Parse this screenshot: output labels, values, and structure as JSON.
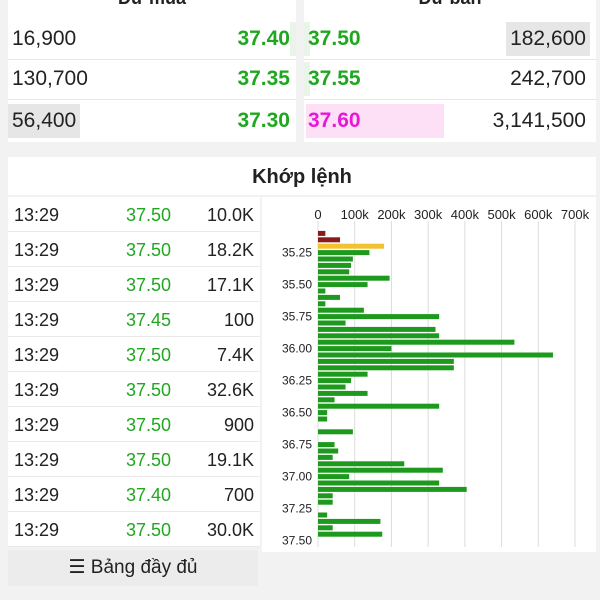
{
  "order_book": {
    "bid_header": "Dư mua",
    "ask_header": "Dư bán",
    "bids": [
      {
        "volume": "16,900",
        "price": "37.40"
      },
      {
        "volume": "130,700",
        "price": "37.35"
      },
      {
        "volume": "56,400",
        "price": "37.30"
      }
    ],
    "asks": [
      {
        "price": "37.50",
        "volume": "182,600"
      },
      {
        "price": "37.55",
        "volume": "242,700"
      },
      {
        "price": "37.60",
        "volume": "3,141,500"
      }
    ]
  },
  "matched": {
    "title": "Khớp lệnh",
    "rows": [
      {
        "time": "13:29",
        "price": "37.50",
        "volume": "10.0K"
      },
      {
        "time": "13:29",
        "price": "37.50",
        "volume": "18.2K"
      },
      {
        "time": "13:29",
        "price": "37.50",
        "volume": "17.1K"
      },
      {
        "time": "13:29",
        "price": "37.45",
        "volume": "100"
      },
      {
        "time": "13:29",
        "price": "37.50",
        "volume": "7.4K"
      },
      {
        "time": "13:29",
        "price": "37.50",
        "volume": "32.6K"
      },
      {
        "time": "13:29",
        "price": "37.50",
        "volume": "900"
      },
      {
        "time": "13:29",
        "price": "37.50",
        "volume": "19.1K"
      },
      {
        "time": "13:29",
        "price": "37.40",
        "volume": "700"
      },
      {
        "time": "13:29",
        "price": "37.50",
        "volume": "30.0K"
      }
    ],
    "full_table_label": "☰ Bảng đầy đủ"
  },
  "colors": {
    "up": "#1fa81f",
    "ceiling": "#e619d6",
    "bar_green": "#1d9a1d",
    "bar_dark_red": "#8b1a1a",
    "bar_yellow": "#f2c230"
  },
  "chart_data": {
    "type": "bar",
    "orientation": "horizontal",
    "x_ticks": [
      "0",
      "100k",
      "200k",
      "300k",
      "400k",
      "500k",
      "600k",
      "700k"
    ],
    "xlim": [
      0,
      700000
    ],
    "y_ticks": [
      "35.25",
      "35.50",
      "35.75",
      "36.00",
      "36.25",
      "36.50",
      "36.75",
      "37.00",
      "37.25",
      "37.50"
    ],
    "ylim": [
      35.05,
      37.55
    ],
    "bars": [
      {
        "price": 35.1,
        "value": 20000,
        "color": "dark_red"
      },
      {
        "price": 35.15,
        "value": 60000,
        "color": "dark_red"
      },
      {
        "price": 35.2,
        "value": 180000,
        "color": "yellow"
      },
      {
        "price": 35.25,
        "value": 140000,
        "color": "green"
      },
      {
        "price": 35.3,
        "value": 95000,
        "color": "green"
      },
      {
        "price": 35.35,
        "value": 90000,
        "color": "green"
      },
      {
        "price": 35.4,
        "value": 85000,
        "color": "green"
      },
      {
        "price": 35.45,
        "value": 195000,
        "color": "green"
      },
      {
        "price": 35.5,
        "value": 135000,
        "color": "green"
      },
      {
        "price": 35.55,
        "value": 20000,
        "color": "green"
      },
      {
        "price": 35.6,
        "value": 60000,
        "color": "green"
      },
      {
        "price": 35.65,
        "value": 20000,
        "color": "green"
      },
      {
        "price": 35.7,
        "value": 125000,
        "color": "green"
      },
      {
        "price": 35.75,
        "value": 330000,
        "color": "green"
      },
      {
        "price": 35.8,
        "value": 75000,
        "color": "green"
      },
      {
        "price": 35.85,
        "value": 320000,
        "color": "green"
      },
      {
        "price": 35.9,
        "value": 330000,
        "color": "green"
      },
      {
        "price": 35.95,
        "value": 535000,
        "color": "green"
      },
      {
        "price": 36.0,
        "value": 200000,
        "color": "green"
      },
      {
        "price": 36.05,
        "value": 640000,
        "color": "green"
      },
      {
        "price": 36.1,
        "value": 370000,
        "color": "green"
      },
      {
        "price": 36.15,
        "value": 370000,
        "color": "green"
      },
      {
        "price": 36.2,
        "value": 135000,
        "color": "green"
      },
      {
        "price": 36.25,
        "value": 90000,
        "color": "green"
      },
      {
        "price": 36.3,
        "value": 75000,
        "color": "green"
      },
      {
        "price": 36.35,
        "value": 135000,
        "color": "green"
      },
      {
        "price": 36.4,
        "value": 45000,
        "color": "green"
      },
      {
        "price": 36.45,
        "value": 330000,
        "color": "green"
      },
      {
        "price": 36.5,
        "value": 25000,
        "color": "green"
      },
      {
        "price": 36.55,
        "value": 25000,
        "color": "green"
      },
      {
        "price": 36.65,
        "value": 95000,
        "color": "green"
      },
      {
        "price": 36.75,
        "value": 45000,
        "color": "green"
      },
      {
        "price": 36.8,
        "value": 55000,
        "color": "green"
      },
      {
        "price": 36.85,
        "value": 40000,
        "color": "green"
      },
      {
        "price": 36.9,
        "value": 235000,
        "color": "green"
      },
      {
        "price": 36.95,
        "value": 340000,
        "color": "green"
      },
      {
        "price": 37.0,
        "value": 85000,
        "color": "green"
      },
      {
        "price": 37.05,
        "value": 330000,
        "color": "green"
      },
      {
        "price": 37.1,
        "value": 405000,
        "color": "green"
      },
      {
        "price": 37.15,
        "value": 40000,
        "color": "green"
      },
      {
        "price": 37.2,
        "value": 40000,
        "color": "green"
      },
      {
        "price": 37.3,
        "value": 25000,
        "color": "green"
      },
      {
        "price": 37.35,
        "value": 170000,
        "color": "green"
      },
      {
        "price": 37.4,
        "value": 40000,
        "color": "green"
      },
      {
        "price": 37.45,
        "value": 175000,
        "color": "green"
      }
    ]
  }
}
